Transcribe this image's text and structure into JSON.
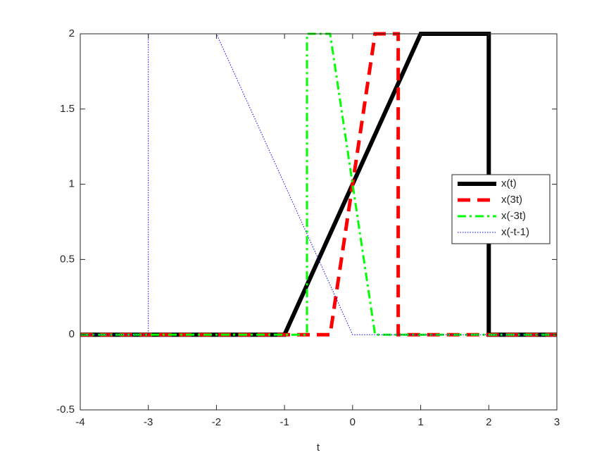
{
  "chart_data": {
    "type": "line",
    "x_label": "t",
    "xlim": [
      -4,
      3
    ],
    "xticks": [
      -4,
      -3,
      -2,
      -1,
      0,
      1,
      2,
      3
    ],
    "ylim": [
      -0.5,
      2
    ],
    "yticks": [
      -0.5,
      0,
      0.5,
      1,
      1.5,
      2
    ],
    "legend": "east",
    "grid": false,
    "series": [
      {
        "name": "x(t)",
        "color": "#000000",
        "style": "solid",
        "width": 6,
        "x": [
          -4,
          -1,
          1,
          2,
          2,
          3
        ],
        "values": [
          0,
          0,
          2,
          2,
          0,
          0
        ]
      },
      {
        "name": "x(3t)",
        "color": "#ff0000",
        "style": "dashed",
        "width": 5,
        "x": [
          -4,
          -0.33,
          0.33,
          0.67,
          0.67,
          3
        ],
        "values": [
          0,
          0,
          2,
          2,
          0,
          0
        ]
      },
      {
        "name": "x(-3t)",
        "color": "#00ff00",
        "style": "dashdot",
        "width": 3,
        "x": [
          -4,
          -0.67,
          -0.67,
          -0.33,
          0.33,
          3
        ],
        "values": [
          0,
          0,
          2,
          2,
          0,
          0
        ]
      },
      {
        "name": "x(-t-1)",
        "color": "#0000ff",
        "style": "dotted",
        "width": 1,
        "x": [
          -4,
          -3,
          -3,
          -2,
          0,
          3
        ],
        "values": [
          0,
          0,
          2,
          2,
          0,
          0
        ]
      }
    ]
  }
}
